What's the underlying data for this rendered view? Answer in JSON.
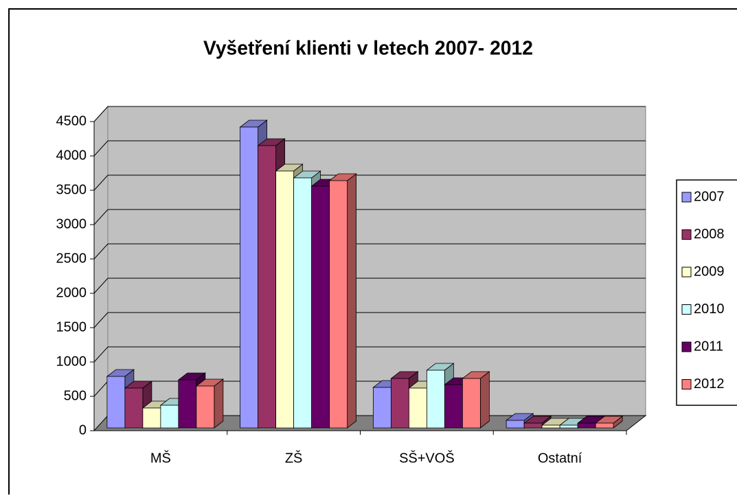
{
  "chart_data": {
    "type": "bar3d",
    "title": "Vyšetření klienti v letech 2007- 2012",
    "categories": [
      "MŠ",
      "ZŠ",
      "SŠ+VOŠ",
      "Ostatní"
    ],
    "series": [
      {
        "name": "2007",
        "color": "#9999ff",
        "values": [
          790,
          4420,
          630,
          150
        ]
      },
      {
        "name": "2008",
        "color": "#993366",
        "values": [
          620,
          4150,
          760,
          110
        ]
      },
      {
        "name": "2009",
        "color": "#ffffcc",
        "values": [
          330,
          3780,
          620,
          80
        ]
      },
      {
        "name": "2010",
        "color": "#ccffff",
        "values": [
          370,
          3680,
          880,
          80
        ]
      },
      {
        "name": "2011",
        "color": "#660066",
        "values": [
          740,
          3560,
          670,
          110
        ]
      },
      {
        "name": "2012",
        "color": "#ff8080",
        "values": [
          650,
          3640,
          760,
          110
        ]
      }
    ],
    "ylim": [
      0,
      4500
    ],
    "yticks": [
      0,
      500,
      1000,
      1500,
      2000,
      2500,
      3000,
      3500,
      4000,
      4500
    ],
    "grid": true,
    "legend": "right"
  }
}
